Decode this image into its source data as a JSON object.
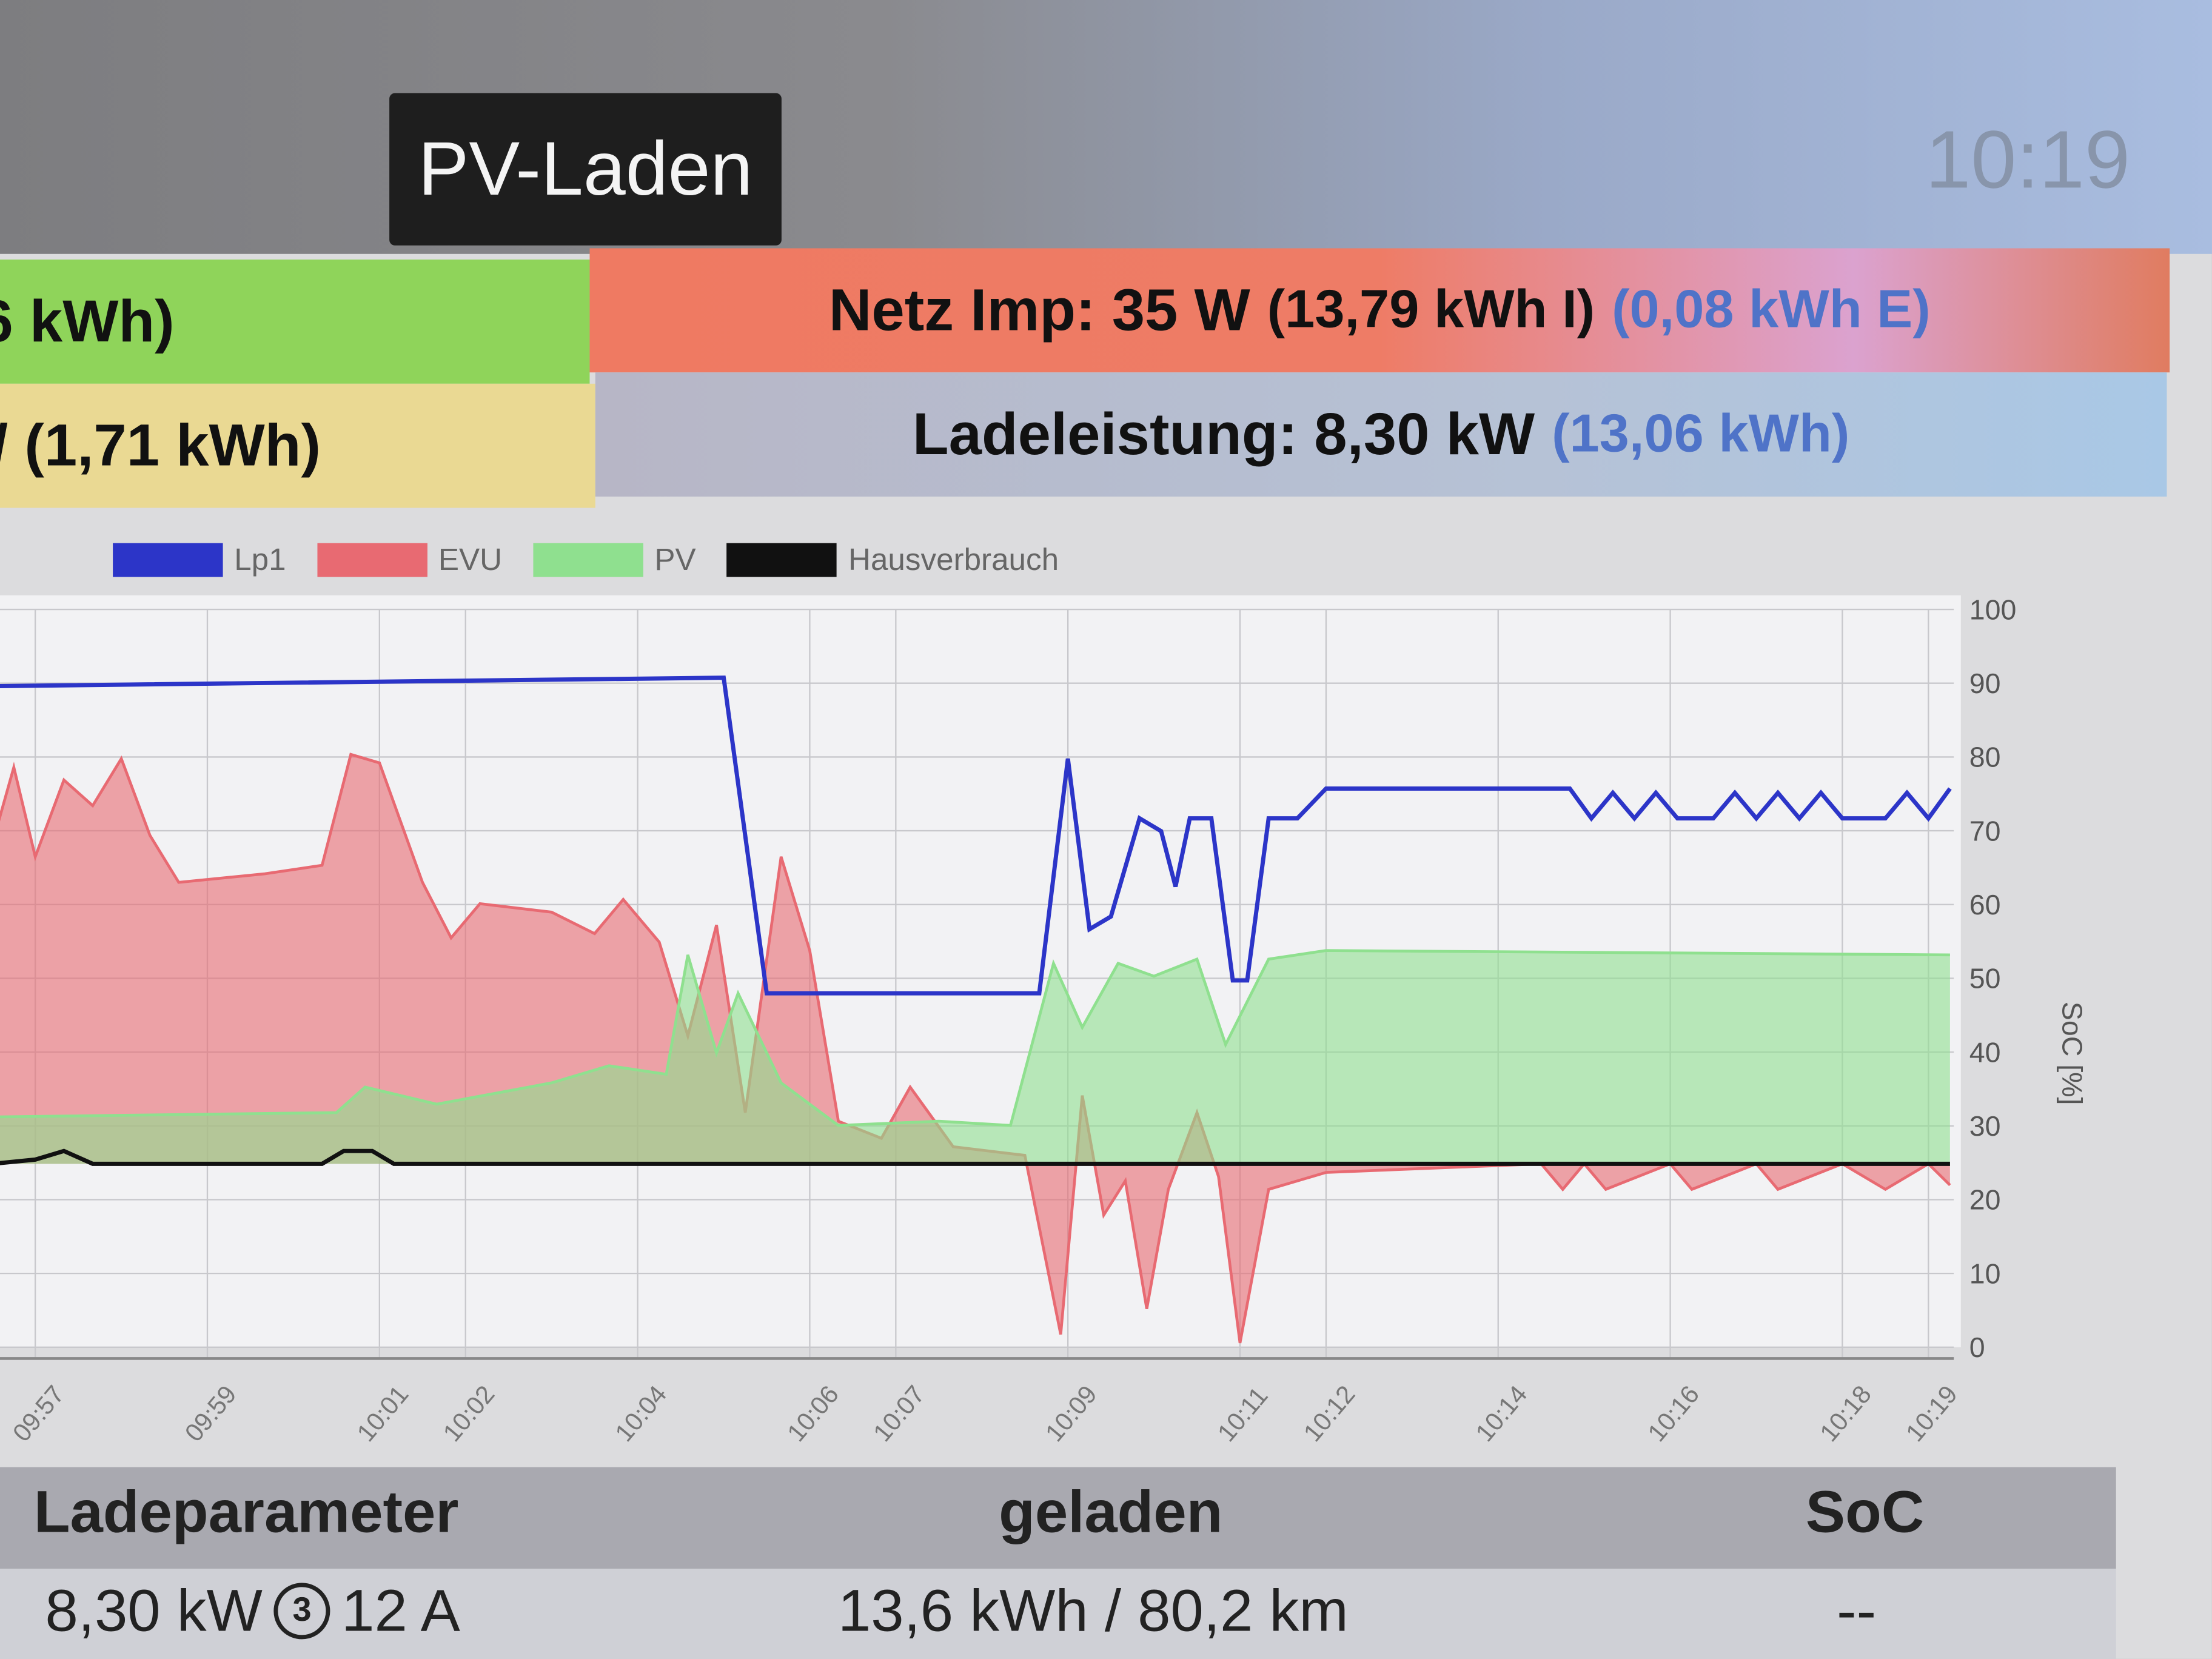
{
  "header": {
    "mode_badge": "PV-Laden",
    "clock": "10:19"
  },
  "status": {
    "pv_row_fragment": "6 kWh)",
    "netz_label": "Netz Imp: 35 W",
    "netz_import": "(13,79 kWh I)",
    "netz_export": "(0,08 kWh E)",
    "house_row_fragment": "/ (1,71 kWh)",
    "ladeleistung_label": "Ladeleistung: 8,30 kW",
    "ladeleistung_energy": "(13,06 kWh)"
  },
  "colors": {
    "lp1": "#2c35c8",
    "evu": "#e86a72",
    "pv": "#8fe08f",
    "hausverbrauch": "#111111",
    "pv_row": "#8fd45a",
    "netz_row": "#ef7a62",
    "house_row": "#ead993",
    "lade_row": "#b6c2d6"
  },
  "chart_data": {
    "type": "area",
    "legend": [
      {
        "name": "Lp1"
      },
      {
        "name": "EVU"
      },
      {
        "name": "PV"
      },
      {
        "name": "Hausverbrauch"
      }
    ],
    "legend_placement": "top-left",
    "x_ticks": [
      "09:57",
      "09:59",
      "10:01",
      "10:02",
      "10:04",
      "10:06",
      "10:07",
      "10:09",
      "10:11",
      "10:12",
      "10:14",
      "10:16",
      "10:18",
      "10:19"
    ],
    "y2_label": "SoC [%]",
    "y2_ticks": [
      "0",
      "10",
      "20",
      "30",
      "40",
      "50",
      "60",
      "70",
      "80",
      "90",
      "100"
    ],
    "y2lim": [
      0,
      100
    ],
    "ylim_kw": [
      -4.3,
      13
    ],
    "grid": true,
    "series": [
      {
        "name": "Lp1",
        "unit": "kW",
        "points": [
          [
            "09:56:30",
            11.2
          ],
          [
            "10:05:00",
            11.4
          ],
          [
            "10:05:30",
            4.0
          ],
          [
            "10:08:40",
            4.0
          ],
          [
            "10:09:00",
            9.5
          ],
          [
            "10:09:15",
            5.5
          ],
          [
            "10:09:30",
            5.8
          ],
          [
            "10:09:50",
            8.1
          ],
          [
            "10:10:05",
            7.8
          ],
          [
            "10:10:15",
            6.5
          ],
          [
            "10:10:25",
            8.1
          ],
          [
            "10:10:40",
            8.1
          ],
          [
            "10:10:55",
            4.3
          ],
          [
            "10:11:05",
            4.3
          ],
          [
            "10:11:20",
            8.1
          ],
          [
            "10:11:40",
            8.1
          ],
          [
            "10:12:00",
            8.8
          ],
          [
            "10:14:50",
            8.8
          ],
          [
            "10:15:05",
            8.1
          ],
          [
            "10:15:20",
            8.7
          ],
          [
            "10:15:35",
            8.1
          ],
          [
            "10:15:50",
            8.7
          ],
          [
            "10:16:05",
            8.1
          ],
          [
            "10:16:30",
            8.1
          ],
          [
            "10:16:45",
            8.7
          ],
          [
            "10:17:00",
            8.1
          ],
          [
            "10:17:15",
            8.7
          ],
          [
            "10:17:30",
            8.1
          ],
          [
            "10:17:45",
            8.7
          ],
          [
            "10:18:00",
            8.1
          ],
          [
            "10:18:30",
            8.1
          ],
          [
            "10:18:45",
            8.7
          ],
          [
            "10:19:00",
            8.1
          ],
          [
            "10:19:15",
            8.8
          ]
        ]
      },
      {
        "name": "EVU",
        "unit": "kW",
        "points": [
          [
            "09:56:30",
            7.5
          ],
          [
            "09:56:45",
            9.3
          ],
          [
            "09:57:00",
            7.2
          ],
          [
            "09:57:20",
            9.0
          ],
          [
            "09:57:40",
            8.4
          ],
          [
            "09:58:00",
            9.5
          ],
          [
            "09:58:20",
            7.7
          ],
          [
            "09:58:40",
            6.6
          ],
          [
            "09:59:40",
            6.8
          ],
          [
            "10:00:20",
            7.0
          ],
          [
            "10:00:40",
            9.6
          ],
          [
            "10:01:00",
            9.4
          ],
          [
            "10:01:30",
            6.6
          ],
          [
            "10:01:50",
            5.3
          ],
          [
            "10:02:10",
            6.1
          ],
          [
            "10:03:00",
            5.9
          ],
          [
            "10:03:30",
            5.4
          ],
          [
            "10:03:50",
            6.2
          ],
          [
            "10:04:15",
            5.2
          ],
          [
            "10:04:35",
            3.0
          ],
          [
            "10:04:55",
            5.6
          ],
          [
            "10:05:15",
            1.2
          ],
          [
            "10:05:40",
            7.2
          ],
          [
            "10:06:00",
            5.0
          ],
          [
            "10:06:20",
            1.0
          ],
          [
            "10:06:50",
            0.6
          ],
          [
            "10:07:10",
            1.8
          ],
          [
            "10:07:40",
            0.4
          ],
          [
            "10:08:30",
            0.2
          ],
          [
            "10:08:55",
            -4.0
          ],
          [
            "10:09:10",
            1.6
          ],
          [
            "10:09:25",
            -1.2
          ],
          [
            "10:09:40",
            -0.4
          ],
          [
            "10:09:55",
            -3.4
          ],
          [
            "10:10:10",
            -0.6
          ],
          [
            "10:10:30",
            1.2
          ],
          [
            "10:10:45",
            -0.3
          ],
          [
            "10:11:00",
            -4.2
          ],
          [
            "10:11:20",
            -0.6
          ],
          [
            "10:12:00",
            -0.2
          ],
          [
            "10:14:30",
            0.0
          ],
          [
            "10:14:45",
            -0.6
          ],
          [
            "10:15:00",
            0.0
          ],
          [
            "10:15:15",
            -0.6
          ],
          [
            "10:16:00",
            0.0
          ],
          [
            "10:16:15",
            -0.6
          ],
          [
            "10:17:00",
            0.0
          ],
          [
            "10:17:15",
            -0.6
          ],
          [
            "10:18:00",
            0.0
          ],
          [
            "10:18:30",
            -0.6
          ],
          [
            "10:19:00",
            0.0
          ],
          [
            "10:19:15",
            -0.5
          ]
        ]
      },
      {
        "name": "PV",
        "unit": "kW",
        "points": [
          [
            "09:56:30",
            1.1
          ],
          [
            "10:00:30",
            1.2
          ],
          [
            "10:00:50",
            1.8
          ],
          [
            "10:01:40",
            1.4
          ],
          [
            "10:03:00",
            1.9
          ],
          [
            "10:03:40",
            2.3
          ],
          [
            "10:04:20",
            2.1
          ],
          [
            "10:04:35",
            4.9
          ],
          [
            "10:04:55",
            2.6
          ],
          [
            "10:05:10",
            4.0
          ],
          [
            "10:05:40",
            1.9
          ],
          [
            "10:06:20",
            0.9
          ],
          [
            "10:07:30",
            1.0
          ],
          [
            "10:08:20",
            0.9
          ],
          [
            "10:08:50",
            4.7
          ],
          [
            "10:09:10",
            3.2
          ],
          [
            "10:09:35",
            4.7
          ],
          [
            "10:10:00",
            4.4
          ],
          [
            "10:10:30",
            4.8
          ],
          [
            "10:10:50",
            2.8
          ],
          [
            "10:11:20",
            4.8
          ],
          [
            "10:12:00",
            5.0
          ],
          [
            "10:19:15",
            4.9
          ]
        ]
      },
      {
        "name": "Hausverbrauch",
        "unit": "kW",
        "points": [
          [
            "09:56:30",
            0.0
          ],
          [
            "09:57:00",
            0.1
          ],
          [
            "09:57:20",
            0.3
          ],
          [
            "09:57:40",
            0.0
          ],
          [
            "10:00:20",
            0.0
          ],
          [
            "10:00:35",
            0.3
          ],
          [
            "10:00:55",
            0.3
          ],
          [
            "10:01:10",
            0.0
          ],
          [
            "10:19:15",
            0.0
          ]
        ]
      }
    ]
  },
  "table": {
    "headers": [
      "Ladeparameter",
      "geladen",
      "SoC"
    ],
    "row": {
      "ladeparameter": "8,30 kW",
      "phases": "3",
      "current": "12 A",
      "geladen": "13,6 kWh / 80,2 km",
      "soc": "--"
    }
  }
}
